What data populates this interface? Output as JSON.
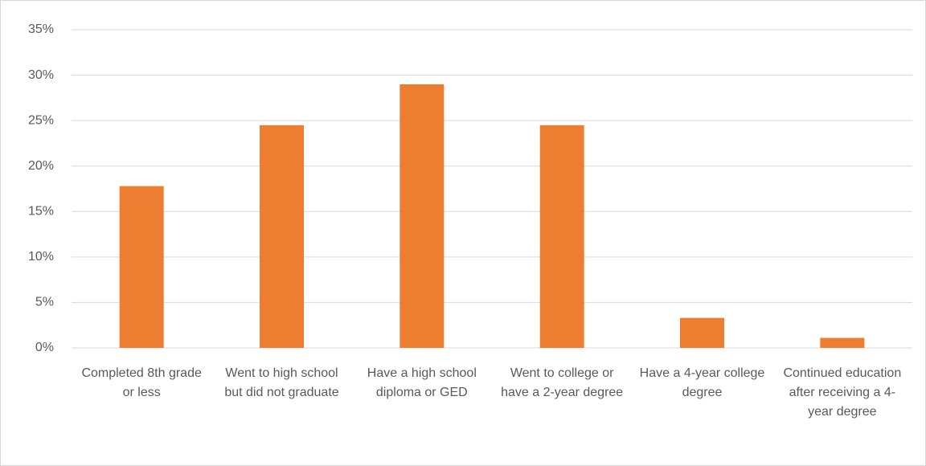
{
  "chart_data": {
    "type": "bar",
    "categories": [
      "Completed 8th grade or less",
      "Went to high school but did not graduate",
      "Have a high school diploma or GED",
      "Went to college or have a 2-year degree",
      "Have a 4-year college degree",
      "Continued education after receiving a 4-year degree"
    ],
    "values": [
      17.8,
      24.5,
      29.0,
      24.5,
      3.3,
      1.1
    ],
    "color": "#ed7d31",
    "ylim": [
      0,
      35
    ],
    "yticks": [
      {
        "value": 0,
        "label": "0%"
      },
      {
        "value": 5,
        "label": "5%"
      },
      {
        "value": 10,
        "label": "10%"
      },
      {
        "value": 15,
        "label": "15%"
      },
      {
        "value": 20,
        "label": "20%"
      },
      {
        "value": 25,
        "label": "25%"
      },
      {
        "value": 30,
        "label": "30%"
      },
      {
        "value": 35,
        "label": "35%"
      }
    ],
    "grid": true
  }
}
